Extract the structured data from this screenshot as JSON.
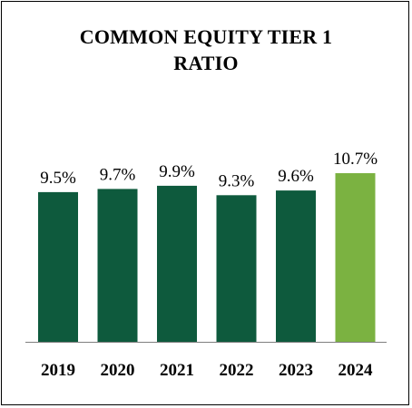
{
  "chart_data": {
    "type": "bar",
    "title_lines": [
      "COMMON EQUITY TIER 1",
      "RATIO"
    ],
    "categories": [
      "2019",
      "2020",
      "2021",
      "2022",
      "2023",
      "2024"
    ],
    "values": [
      9.5,
      9.7,
      9.9,
      9.3,
      9.6,
      10.7
    ],
    "value_labels": [
      "9.5%",
      "9.7%",
      "9.9%",
      "9.3%",
      "9.6%",
      "10.7%"
    ],
    "xlabel": "",
    "ylabel": "",
    "ylim": [
      0,
      10.7
    ],
    "grid": false,
    "legend": "none",
    "colors": {
      "default_bar": "#0e5a3d",
      "highlight_bar": "#7bb241",
      "axis": "#808080",
      "text": "#000000"
    },
    "highlight_index": 5
  }
}
